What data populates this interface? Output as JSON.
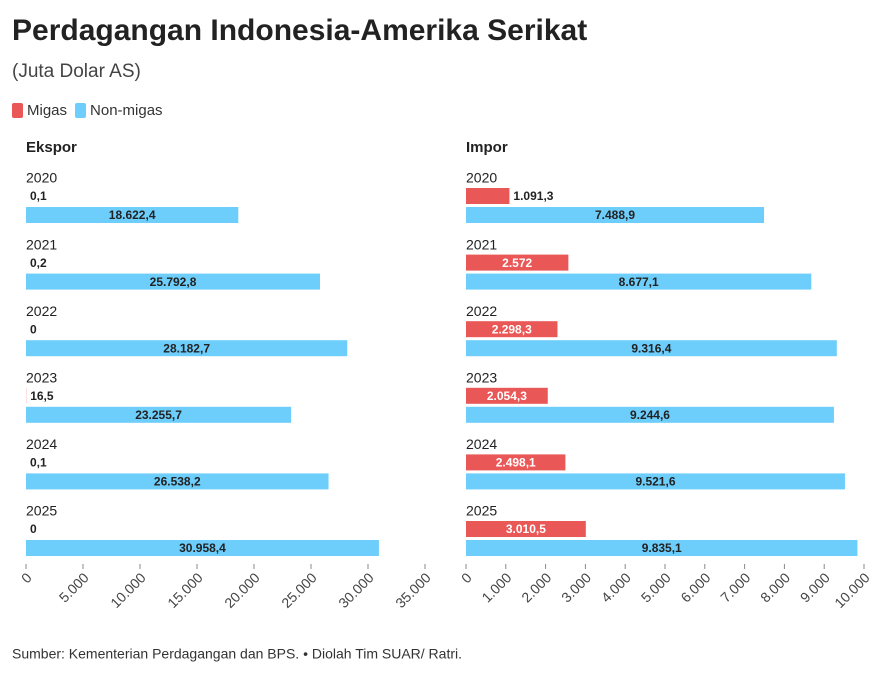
{
  "title": "Perdagangan Indonesia-Amerika Serikat",
  "subtitle": "(Juta Dolar AS)",
  "source": "Sumber: Kementerian Perdagangan dan BPS. • Diolah Tim SUAR/ Ratri.",
  "chart_data": [
    {
      "type": "bar",
      "orientation": "horizontal",
      "title": "Ekspor",
      "categories": [
        "2020",
        "2021",
        "2022",
        "2023",
        "2024",
        "2025"
      ],
      "series": [
        {
          "name": "Migas",
          "color": "#ea5757",
          "values": [
            0.1,
            0.2,
            0,
            16.5,
            0.1,
            0
          ],
          "value_labels": [
            "0,1",
            "0,2",
            "0",
            "16,5",
            "0,1",
            "0"
          ]
        },
        {
          "name": "Non-migas",
          "color": "#6dcdfb",
          "values": [
            18622.4,
            25792.8,
            28182.7,
            23255.7,
            26538.2,
            30958.4
          ],
          "value_labels": [
            "18.622,4",
            "25.792,8",
            "28.182,7",
            "23.255,7",
            "26.538,2",
            "30.958,4"
          ]
        }
      ],
      "xlim": [
        0,
        35000
      ],
      "xticks": [
        0,
        {
          "value": 5000,
          "label": "5.000"
        },
        {
          "value": 10000,
          "label": "10.000"
        },
        {
          "value": 15000,
          "label": "15.000"
        },
        {
          "value": 20000,
          "label": "20.000"
        },
        {
          "value": 25000,
          "label": "25.000"
        },
        {
          "value": 30000,
          "label": "30.000"
        },
        {
          "value": 35000,
          "label": "35.000"
        }
      ]
    },
    {
      "type": "bar",
      "orientation": "horizontal",
      "title": "Impor",
      "categories": [
        "2020",
        "2021",
        "2022",
        "2023",
        "2024",
        "2025"
      ],
      "series": [
        {
          "name": "Migas",
          "color": "#ea5757",
          "values": [
            1091.3,
            2572,
            2298.3,
            2054.3,
            2498.1,
            3010.5
          ],
          "value_labels": [
            "1.091,3",
            "2.572",
            "2.298,3",
            "2.054,3",
            "2.498,1",
            "3.010,5"
          ]
        },
        {
          "name": "Non-migas",
          "color": "#6dcdfb",
          "values": [
            7488.9,
            8677.1,
            9316.4,
            9244.6,
            9521.6,
            9835.1
          ],
          "value_labels": [
            "7.488,9",
            "8.677,1",
            "9.316,4",
            "9.244,6",
            "9.521,6",
            "9.835,1"
          ]
        }
      ],
      "xlim": [
        0,
        10000
      ],
      "xticks": [
        0,
        {
          "value": 1000,
          "label": "1.000"
        },
        {
          "value": 2000,
          "label": "2.000"
        },
        {
          "value": 3000,
          "label": "3.000"
        },
        {
          "value": 4000,
          "label": "4.000"
        },
        {
          "value": 5000,
          "label": "5.000"
        },
        {
          "value": 6000,
          "label": "6.000"
        },
        {
          "value": 7000,
          "label": "7.000"
        },
        {
          "value": 8000,
          "label": "8.000"
        },
        {
          "value": 9000,
          "label": "9.000"
        },
        {
          "value": 10000,
          "label": "10.000"
        }
      ]
    }
  ]
}
